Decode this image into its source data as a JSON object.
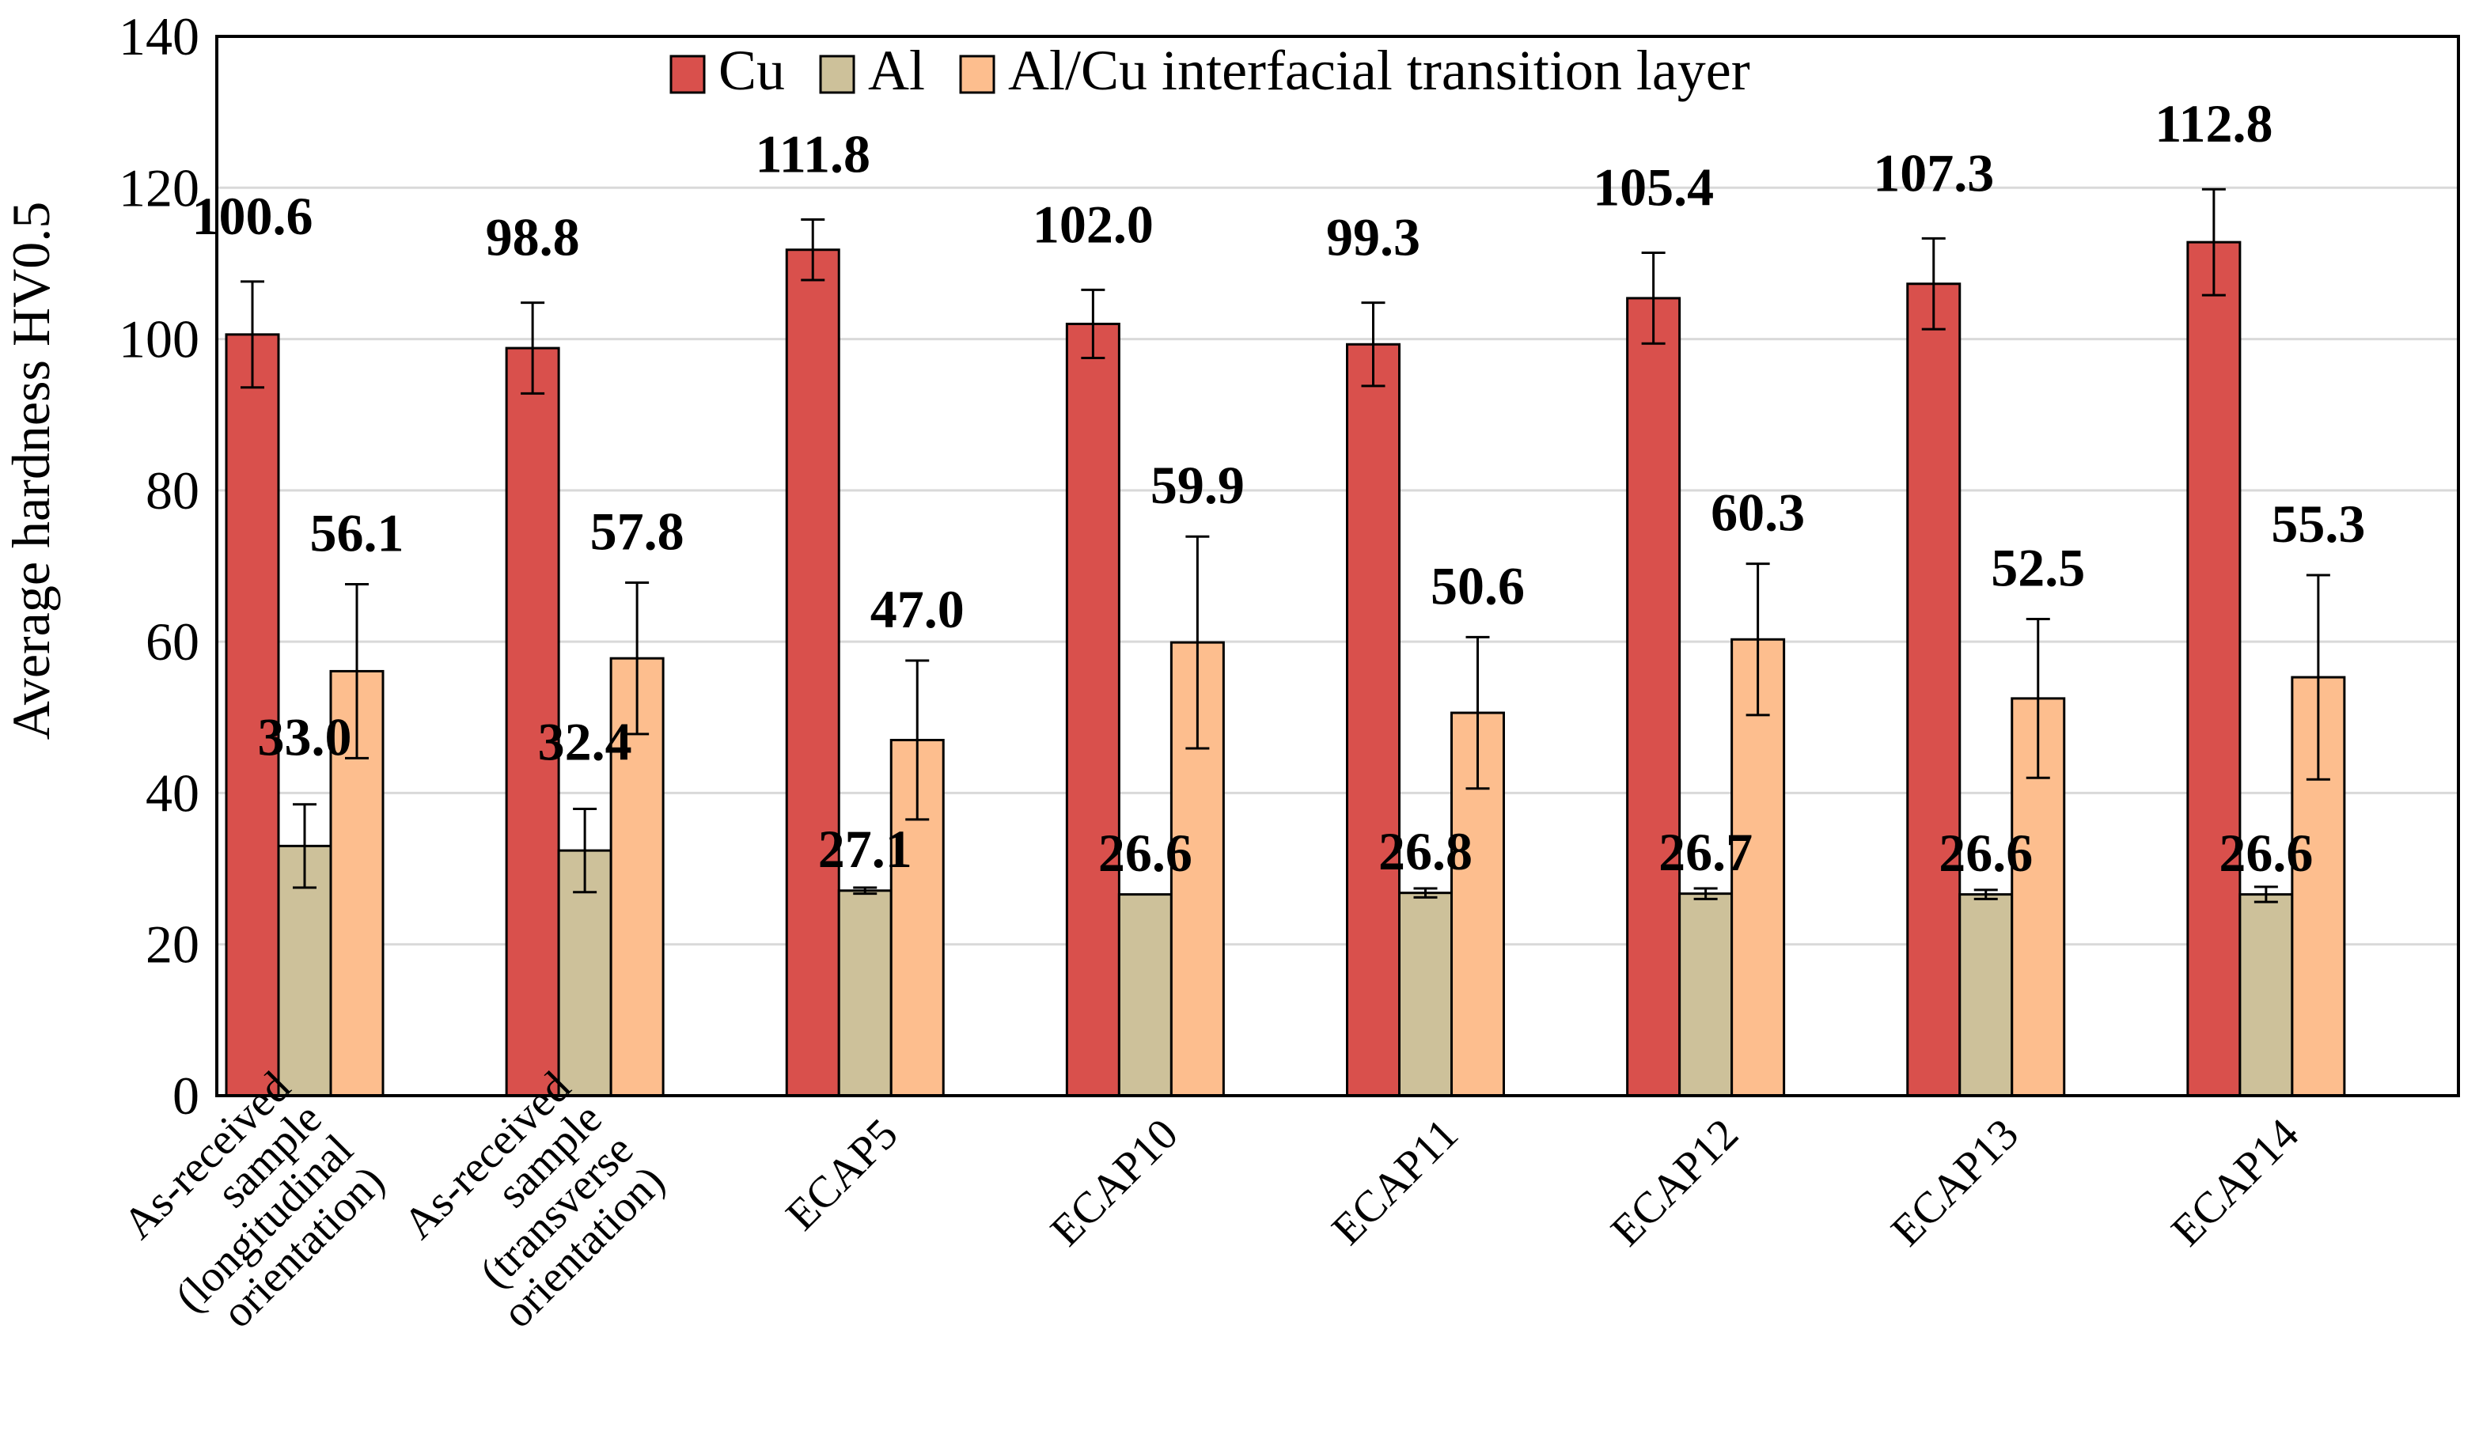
{
  "chart_data": {
    "type": "bar",
    "title": "",
    "xlabel": "",
    "ylabel": "Average hardness HV0.5",
    "ylim": [
      0,
      140
    ],
    "yticks": [
      0,
      20,
      40,
      60,
      80,
      100,
      120,
      140
    ],
    "grid": true,
    "legend_position": "top-center",
    "categories": [
      "As-received sample (longitudinal orientation)",
      "As-received sample (transverse orientation)",
      "ECAP5",
      "ECAP10",
      "ECAP11",
      "ECAP12",
      "ECAP13",
      "ECAP14"
    ],
    "category_lines": [
      [
        "As-received",
        "sample",
        "(longitudinal",
        "orientation)"
      ],
      [
        "As-received",
        "sample",
        "(transverse",
        "orientation)"
      ],
      [
        "ECAP5"
      ],
      [
        "ECAP10"
      ],
      [
        "ECAP11"
      ],
      [
        "ECAP12"
      ],
      [
        "ECAP13"
      ],
      [
        "ECAP14"
      ]
    ],
    "series": [
      {
        "name": "Cu",
        "color": "#d9504c",
        "values": [
          100.6,
          98.8,
          111.8,
          102.0,
          99.3,
          105.4,
          107.3,
          112.8
        ],
        "labels": [
          "100.6",
          "98.8",
          "111.8",
          "102.0",
          "99.3",
          "105.4",
          "107.3",
          "112.8"
        ],
        "errors": [
          7.0,
          6.0,
          4.0,
          4.5,
          5.5,
          6.0,
          6.0,
          7.0
        ]
      },
      {
        "name": "Al",
        "color": "#cdc19a",
        "values": [
          33.0,
          32.4,
          27.1,
          26.6,
          26.8,
          26.7,
          26.6,
          26.6
        ],
        "labels": [
          "33.0",
          "32.4",
          "27.1",
          "26.6",
          "26.8",
          "26.7",
          "26.6",
          "26.6"
        ],
        "errors": [
          5.5,
          5.5,
          0.4,
          0.0,
          0.6,
          0.7,
          0.6,
          1.0
        ]
      },
      {
        "name": "Al/Cu interfacial transition layer",
        "color": "#fdbe8e",
        "values": [
          56.1,
          57.8,
          47.0,
          59.9,
          50.6,
          60.3,
          52.5,
          55.3
        ],
        "labels": [
          "56.1",
          "57.8",
          "47.0",
          "59.9",
          "50.6",
          "60.3",
          "52.5",
          "55.3"
        ],
        "errors": [
          11.5,
          10.0,
          10.5,
          14.0,
          10.0,
          10.0,
          10.5,
          13.5
        ]
      }
    ]
  }
}
